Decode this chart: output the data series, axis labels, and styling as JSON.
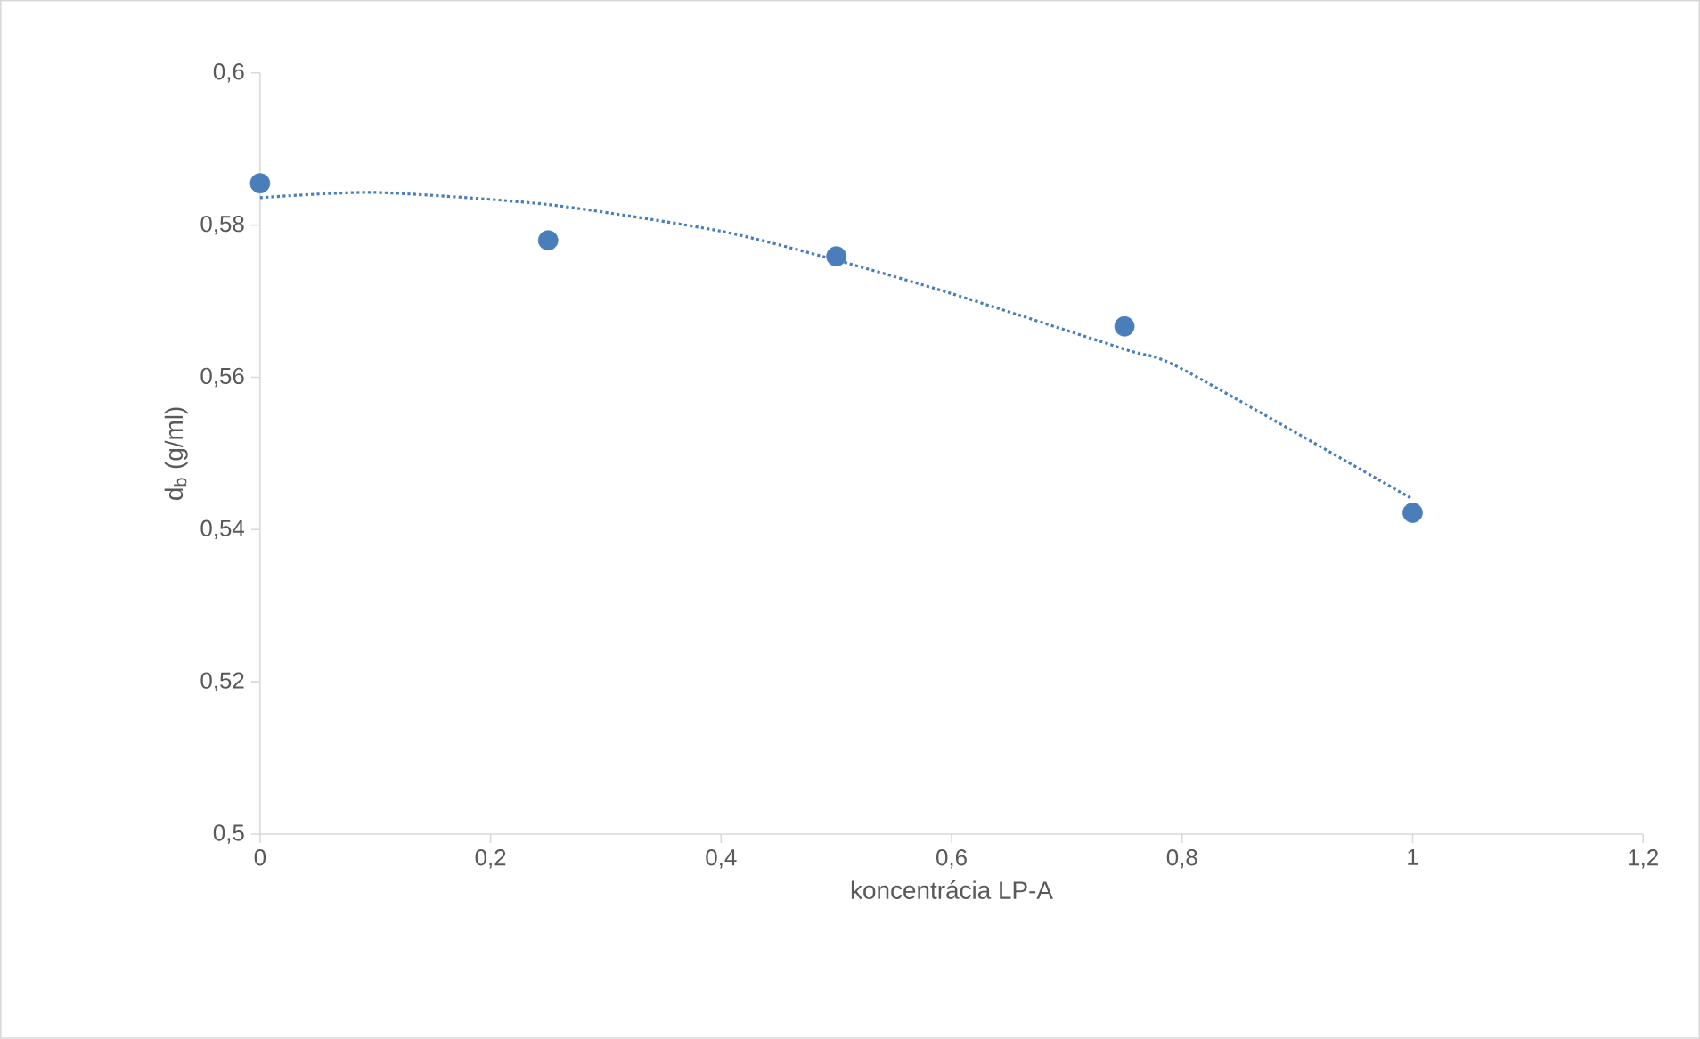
{
  "chart_data": {
    "type": "scatter",
    "xlabel": "koncentrácia LP-A",
    "ylabel": "d$_{b}$ (g/ml)",
    "xlim": [
      0,
      1.2
    ],
    "ylim": [
      0.5,
      0.6
    ],
    "xticks": [
      0,
      {
        "value": 0.2,
        "label": "0,2"
      },
      {
        "value": 0.4,
        "label": "0,4"
      },
      {
        "value": 0.6,
        "label": "0,6"
      },
      {
        "value": 0.8,
        "label": "0,8"
      },
      1,
      {
        "value": 1.2,
        "label": "1,2"
      }
    ],
    "yticks": [
      {
        "value": 0.5,
        "label": "0,5"
      },
      {
        "value": 0.52,
        "label": "0,52"
      },
      {
        "value": 0.54,
        "label": "0,54"
      },
      {
        "value": 0.56,
        "label": "0,56"
      },
      {
        "value": 0.58,
        "label": "0,58"
      },
      {
        "value": 0.6,
        "label": "0,6"
      }
    ],
    "series": [
      {
        "marker": "circle",
        "color": "#4a7ebb",
        "x": [
          0,
          0.25,
          0.5,
          0.75,
          1
        ],
        "values": [
          0.5855,
          0.578,
          0.5759,
          0.5667,
          0.5422
        ]
      },
      {
        "type": "line",
        "marker": "none",
        "line_style": "dotted",
        "color": "#4a7ebb",
        "x": [
          0,
          0.1,
          0.25,
          0.4,
          0.5,
          0.6,
          0.75,
          0.8,
          1
        ],
        "values": [
          0.5836,
          0.5843,
          0.5827,
          0.5792,
          0.5754,
          0.571,
          0.5637,
          0.5611,
          0.544
        ]
      }
    ]
  }
}
